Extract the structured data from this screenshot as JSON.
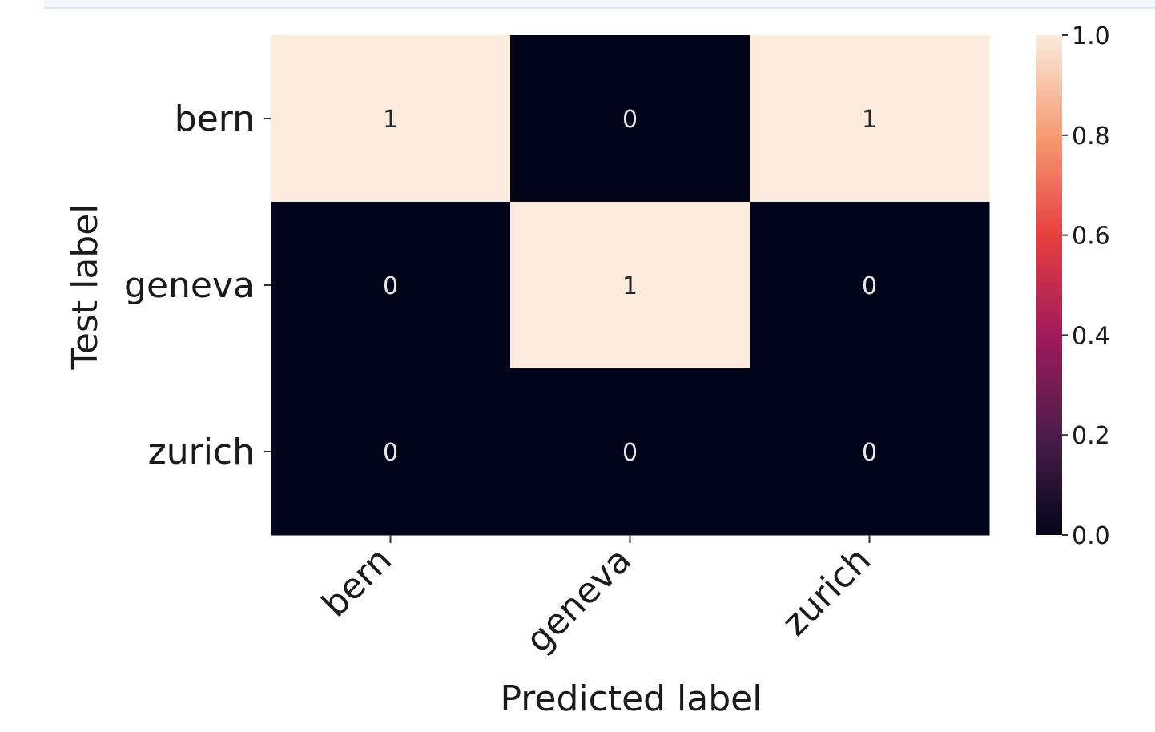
{
  "chart_data": {
    "type": "heatmap",
    "title": "",
    "xlabel": "Predicted label",
    "ylabel": "Test label",
    "x_categories": [
      "bern",
      "geneva",
      "zurich"
    ],
    "y_categories": [
      "bern",
      "geneva",
      "zurich"
    ],
    "values": [
      [
        1,
        0,
        1
      ],
      [
        0,
        1,
        0
      ],
      [
        0,
        0,
        0
      ]
    ],
    "colorbar": {
      "range": [
        0.0,
        1.0
      ],
      "ticks": [
        "0.0",
        "0.2",
        "0.4",
        "0.6",
        "0.8",
        "1.0"
      ],
      "colormap": [
        "#03051a",
        "#4c1d4b",
        "#a11a5b",
        "#e83f3f",
        "#f69c73",
        "#faebdd"
      ]
    },
    "annotations": true
  }
}
